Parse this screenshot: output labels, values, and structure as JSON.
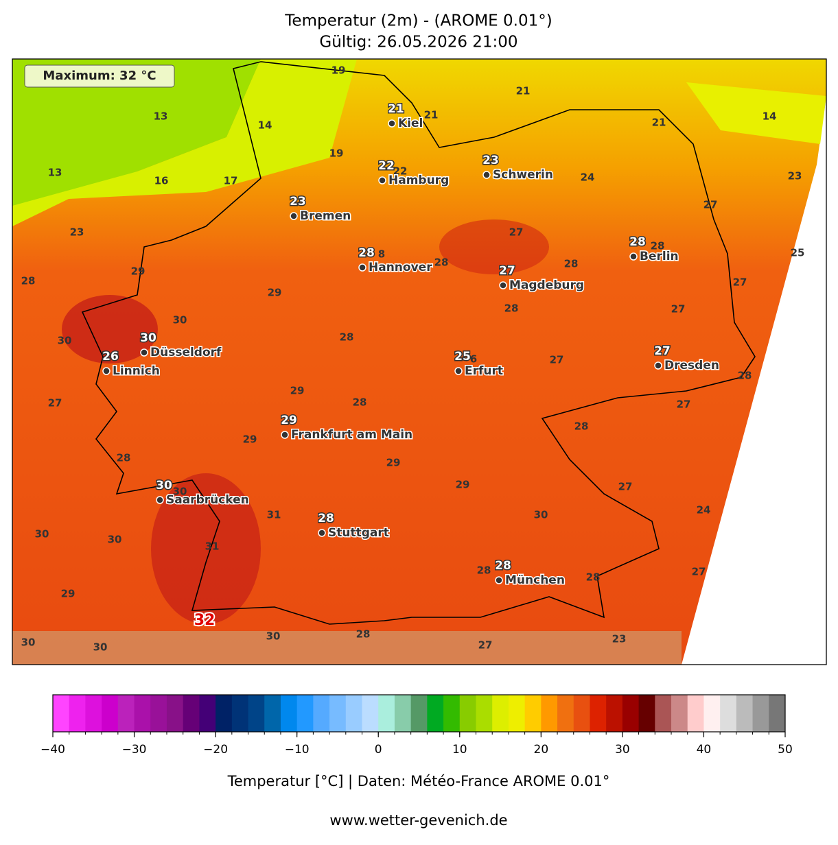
{
  "title": "Temperatur (2m) - (AROME 0.01°)",
  "subtitle": "Gültig: 26.05.2026 21:00",
  "maximum_label": "Maximum: 32 °C",
  "max_marker": 32,
  "cities": [
    {
      "name": "Kiel",
      "value": 21
    },
    {
      "name": "Hamburg",
      "value": 22
    },
    {
      "name": "Schwerin",
      "value": 23
    },
    {
      "name": "Bremen",
      "value": 23
    },
    {
      "name": "Hannover",
      "value": 28
    },
    {
      "name": "Berlin",
      "value": 28
    },
    {
      "name": "Magdeburg",
      "value": 27
    },
    {
      "name": "Düsseldorf",
      "value": 30
    },
    {
      "name": "Linnich",
      "value": 26
    },
    {
      "name": "Erfurt",
      "value": 25
    },
    {
      "name": "Dresden",
      "value": 27
    },
    {
      "name": "Frankfurt am Main",
      "value": 29
    },
    {
      "name": "Saarbrücken",
      "value": 30
    },
    {
      "name": "Stuttgart",
      "value": 28
    },
    {
      "name": "München",
      "value": 28
    }
  ],
  "contour_labels": [
    19,
    21,
    13,
    14,
    21,
    21,
    14,
    19,
    13,
    16,
    17,
    22,
    24,
    23,
    23,
    27,
    27,
    28,
    28,
    25,
    28,
    29,
    28,
    29,
    27,
    28,
    27,
    30,
    30,
    28,
    6,
    27,
    28,
    29,
    27,
    28,
    27,
    28,
    29,
    29,
    28,
    29,
    27,
    30,
    31,
    30,
    24,
    30,
    30,
    31,
    28,
    28,
    27,
    29,
    30,
    28,
    27,
    23,
    30,
    30,
    8
  ],
  "colorbar": {
    "ticks": [
      {
        "value": -40,
        "label": "−40"
      },
      {
        "value": -30,
        "label": "−30"
      },
      {
        "value": -20,
        "label": "−20"
      },
      {
        "value": -10,
        "label": "−10"
      },
      0,
      10,
      20,
      30,
      40,
      50
    ],
    "colors": [
      "#ff44ff",
      "#ee22ee",
      "#dd11dd",
      "#cc00cc",
      "#bb22bb",
      "#aa11aa",
      "#991199",
      "#881188",
      "#660077",
      "#440077",
      "#002266",
      "#003377",
      "#004488",
      "#0066aa",
      "#0088ee",
      "#2299ff",
      "#55aaff",
      "#77bbff",
      "#99ccff",
      "#bbddff",
      "#aaeedd",
      "#88ccaa",
      "#559966",
      "#00aa22",
      "#33bb00",
      "#88cc00",
      "#aadd00",
      "#ddee00",
      "#eeee00",
      "#ffcc00",
      "#ff9900",
      "#f07010",
      "#e85010",
      "#dd2200",
      "#bb1100",
      "#990000",
      "#660000",
      "#aa5555",
      "#cc8888",
      "#ffcccc",
      "#fff0f0",
      "#dddddd",
      "#bbbbbb",
      "#999999",
      "#777777"
    ],
    "label": "Temperatur [°C] | Daten: Météo-France AROME 0.01°"
  },
  "footer": "www.wetter-gevenich.de"
}
